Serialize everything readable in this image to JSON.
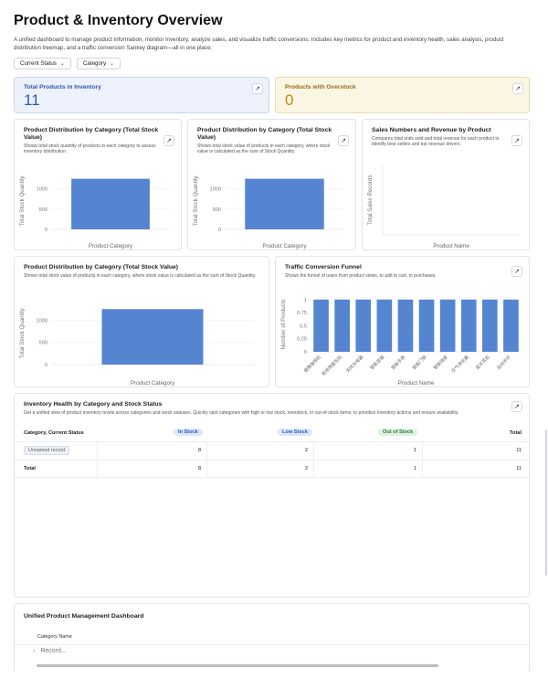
{
  "header": {
    "title": "Product & Inventory Overview",
    "subtitle": "A unified dashboard to manage product information, monitor inventory, analyze sales, and visualize traffic conversions. Includes key metrics for product and inventory health, sales analysis, product distribution treemap, and a traffic conversion Sankey diagram—all in one place."
  },
  "filters": [
    {
      "label": "Current Status"
    },
    {
      "label": "Category"
    }
  ],
  "kpis": {
    "total": {
      "label": "Total Products in Inventory",
      "value": "11"
    },
    "overstock": {
      "label": "Products with Overstock",
      "value": "0"
    }
  },
  "cards": {
    "dist1": {
      "title": "Product Distribution by Category (Total Stock Value)",
      "desc": "Shows total stock quantity of products in each category to assess inventory distribution."
    },
    "dist2": {
      "title": "Product Distribution by Category (Total Stock Value)",
      "desc": "Shows total stock value of products in each category, where stock value is calculated as the sum of Stock Quantity."
    },
    "sales": {
      "title": "Sales Numbers and Revenue by Product",
      "desc": "Compares total units sold and total revenue for each product to identify best sellers and top revenue drivers."
    },
    "dist3": {
      "title": "Product Distribution by Category (Total Stock Value)",
      "desc": "Shows total stock value of products in each category, where stock value is calculated as the sum of Stock Quantity."
    },
    "funnel": {
      "title": "Traffic Conversion Funnel",
      "desc": "Shows the funnel of users from product views, to add to cart, to purchases."
    },
    "health": {
      "title": "Inventory Health by Category and Stock Status",
      "desc": "Get a unified view of product inventory levels across categories and stock statuses. Quickly spot categories with high or low stock, overstock, or out-of-stock items, to prioritize inventory actions and ensure availability."
    },
    "unified": {
      "title": "Unified Product Management Dashboard",
      "column": "Category Name",
      "record_placeholder": "Record..."
    }
  },
  "table": {
    "headers": {
      "first": "Category, Current Status",
      "in_stock": "In Stock",
      "low_stock": "Low Stock",
      "out_of_stock": "Out of Stock",
      "total": "Total"
    },
    "rows": [
      {
        "name": "Unnamed record",
        "in_stock": "8",
        "low_stock": "2",
        "out_of_stock": "1",
        "total": "11"
      },
      {
        "name": "Total",
        "in_stock": "8",
        "low_stock": "2",
        "out_of_stock": "1",
        "total": "11"
      }
    ]
  },
  "chart_data": [
    {
      "type": "bar",
      "categories": [
        ""
      ],
      "values": [
        1250
      ],
      "xlabel": "Product Category",
      "ylabel": "Total Stock Quantity",
      "yticks": [
        "0",
        "500",
        "1000"
      ],
      "ylim": [
        0,
        1400
      ]
    },
    {
      "type": "bar",
      "categories": [
        ""
      ],
      "values": [
        1250
      ],
      "xlabel": "Product Category",
      "ylabel": "Total Stock Quantity",
      "yticks": [
        "0",
        "500",
        "1000"
      ],
      "ylim": [
        0,
        1400
      ]
    },
    {
      "type": "bar",
      "categories": [],
      "values": [],
      "xlabel": "Product Name",
      "ylabel": "Total Sales Records"
    },
    {
      "type": "bar",
      "categories": [
        ""
      ],
      "values": [
        1250
      ],
      "xlabel": "Product Category",
      "ylabel": "Total Stock Quantity",
      "yticks": [
        "0",
        "500",
        "1000"
      ],
      "ylim": [
        0,
        1400
      ]
    },
    {
      "type": "bar",
      "categories": [
        "便携咖啡机",
        "家用烤面包机",
        "无线充电器",
        "智能音箱",
        "智能手表",
        "智能门锁",
        "智能插座",
        "空气净化器",
        "蓝牙耳机",
        "运动手环"
      ],
      "values": [
        1,
        1,
        1,
        1,
        1,
        1,
        1,
        1,
        1,
        1
      ],
      "xlabel": "Product Name",
      "ylabel": "Number of Products",
      "yticks": [
        "0",
        "0.25",
        "0.5",
        "0.75",
        "1"
      ],
      "ylim": [
        0,
        1.05
      ]
    }
  ]
}
